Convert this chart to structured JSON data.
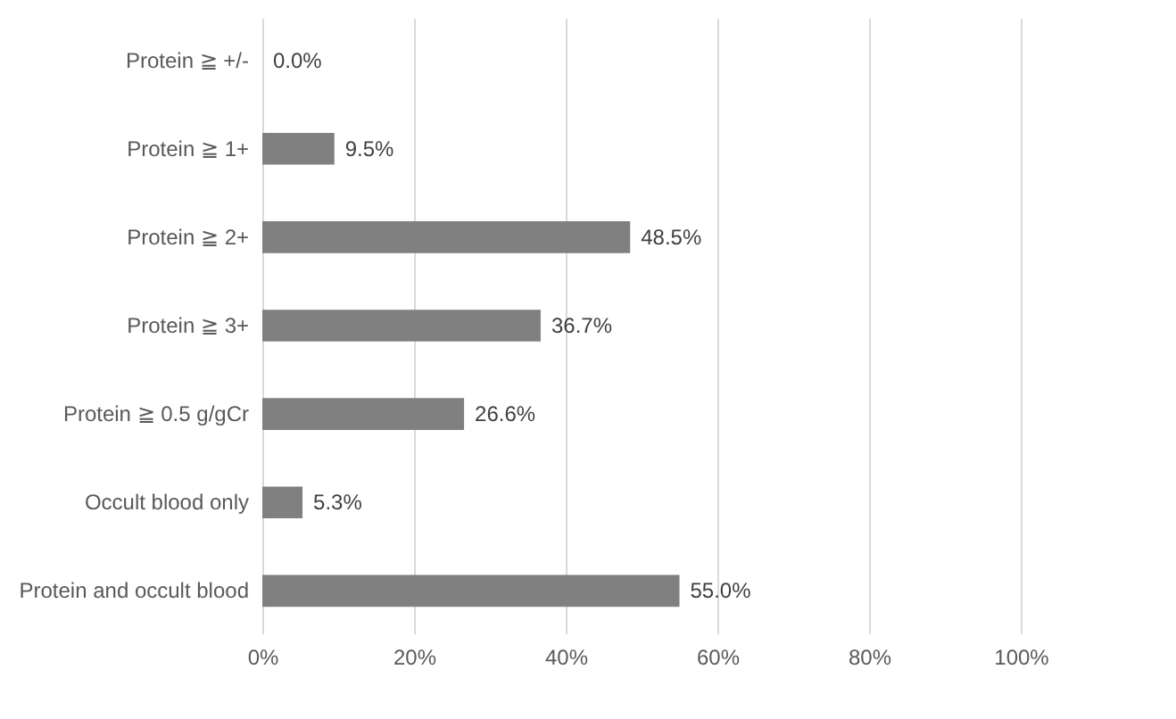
{
  "chart_data": {
    "type": "bar",
    "orientation": "horizontal",
    "categories": [
      "Protein ≧ +/-",
      "Protein ≧ 1+",
      "Protein ≧ 2+",
      "Protein ≧ 3+",
      "Protein ≧ 0.5 g/gCr",
      "Occult blood only",
      "Protein and occult blood"
    ],
    "values": [
      0.0,
      9.5,
      48.5,
      36.7,
      26.6,
      5.3,
      55.0
    ],
    "value_labels": [
      "0.0%",
      "9.5%",
      "48.5%",
      "36.7%",
      "26.6%",
      "5.3%",
      "55.0%"
    ],
    "color": "#808080",
    "xlim": [
      0,
      100
    ],
    "xticks": [
      {
        "value": 0,
        "label": "0%"
      },
      {
        "value": 20,
        "label": "20%"
      },
      {
        "value": 40,
        "label": "40%"
      },
      {
        "value": 60,
        "label": "60%"
      },
      {
        "value": 80,
        "label": "80%"
      },
      {
        "value": 100,
        "label": "100%"
      }
    ],
    "grid": "x"
  }
}
